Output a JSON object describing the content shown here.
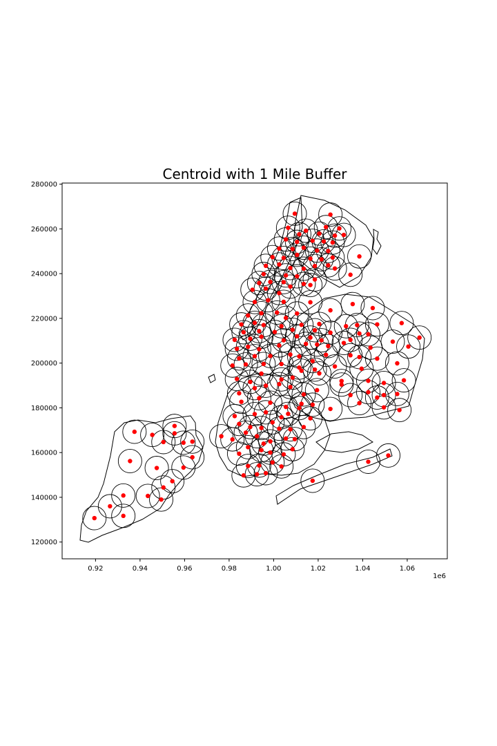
{
  "chart_data": {
    "type": "scatter",
    "title": "Centroid with 1 Mile Buffer",
    "xlabel": "",
    "ylabel": "",
    "x_offset_label": "1e6",
    "xlim": [
      0.905,
      1.078
    ],
    "ylim": [
      112500,
      280500
    ],
    "x_ticks": [
      0.92,
      0.94,
      0.96,
      0.98,
      1.0,
      1.02,
      1.04,
      1.06
    ],
    "x_tick_labels": [
      "0.92",
      "0.94",
      "0.96",
      "0.98",
      "1.00",
      "1.02",
      "1.04",
      "1.06"
    ],
    "y_ticks": [
      120000,
      140000,
      160000,
      180000,
      200000,
      220000,
      240000,
      260000,
      280000
    ],
    "y_tick_labels": [
      "120000",
      "140000",
      "160000",
      "180000",
      "200000",
      "220000",
      "240000",
      "260000",
      "280000"
    ],
    "grid": false,
    "buffer_radius": 0.00528,
    "colors": {
      "point": "#ff0000",
      "buffer": "#000000",
      "outline": "#000000"
    },
    "points": [
      [
        1.0095,
        266800
      ],
      [
        1.0255,
        266400
      ],
      [
        1.0065,
        260500
      ],
      [
        1.0145,
        259200
      ],
      [
        1.0235,
        260800
      ],
      [
        1.0295,
        260200
      ],
      [
        1.0115,
        257600
      ],
      [
        1.0205,
        257900
      ],
      [
        1.0275,
        257000
      ],
      [
        1.0315,
        257300
      ],
      [
        1.0055,
        255300
      ],
      [
        1.0105,
        254200
      ],
      [
        1.0175,
        254700
      ],
      [
        1.0225,
        254400
      ],
      [
        1.0265,
        253900
      ],
      [
        1.0025,
        251200
      ],
      [
        1.0085,
        251000
      ],
      [
        1.0135,
        251600
      ],
      [
        1.0195,
        250300
      ],
      [
        1.0245,
        250100
      ],
      [
        0.9995,
        247400
      ],
      [
        1.0045,
        247000
      ],
      [
        1.0105,
        248400
      ],
      [
        1.0165,
        246700
      ],
      [
        1.0215,
        246400
      ],
      [
        1.0265,
        247200
      ],
      [
        1.0385,
        247700
      ],
      [
        0.9965,
        243500
      ],
      [
        1.0025,
        244100
      ],
      [
        1.0075,
        242500
      ],
      [
        1.0135,
        242200
      ],
      [
        1.0185,
        243400
      ],
      [
        1.0245,
        243700
      ],
      [
        1.0275,
        242300
      ],
      [
        1.0345,
        239500
      ],
      [
        0.9955,
        239800
      ],
      [
        1.0055,
        239200
      ],
      [
        1.0105,
        238800
      ],
      [
        1.0185,
        237400
      ],
      [
        0.9935,
        235800
      ],
      [
        0.9985,
        236300
      ],
      [
        1.0045,
        236200
      ],
      [
        1.0135,
        235400
      ],
      [
        0.9905,
        232800
      ],
      [
        0.9965,
        233300
      ],
      [
        1.0025,
        231300
      ],
      [
        1.0075,
        234200
      ],
      [
        1.0165,
        234900
      ],
      [
        0.9915,
        227300
      ],
      [
        0.9975,
        228100
      ],
      [
        1.0045,
        227400
      ],
      [
        1.0165,
        227200
      ],
      [
        1.0355,
        226400
      ],
      [
        1.0445,
        224600
      ],
      [
        0.9885,
        221300
      ],
      [
        0.9945,
        222300
      ],
      [
        1.0015,
        222600
      ],
      [
        1.0055,
        220200
      ],
      [
        1.0105,
        222200
      ],
      [
        1.0255,
        223600
      ],
      [
        0.9855,
        217300
      ],
      [
        0.9915,
        218000
      ],
      [
        0.9955,
        217000
      ],
      [
        1.0035,
        216500
      ],
      [
        1.0125,
        217100
      ],
      [
        1.0205,
        217500
      ],
      [
        1.0325,
        216500
      ],
      [
        1.0375,
        217000
      ],
      [
        1.0465,
        217300
      ],
      [
        1.0575,
        217900
      ],
      [
        0.9865,
        213800
      ],
      [
        0.9935,
        214300
      ],
      [
        1.0005,
        213900
      ],
      [
        1.0085,
        214900
      ],
      [
        1.0185,
        214700
      ],
      [
        1.0255,
        213600
      ],
      [
        1.0385,
        213200
      ],
      [
        1.0425,
        212900
      ],
      [
        0.9825,
        210400
      ],
      [
        0.9895,
        210900
      ],
      [
        0.9945,
        211800
      ],
      [
        1.0045,
        210200
      ],
      [
        1.0105,
        212000
      ],
      [
        1.0165,
        211400
      ],
      [
        1.0215,
        210200
      ],
      [
        1.0345,
        210400
      ],
      [
        1.0535,
        209600
      ],
      [
        1.0655,
        211400
      ],
      [
        0.9835,
        206400
      ],
      [
        0.9885,
        207300
      ],
      [
        0.9935,
        206200
      ],
      [
        1.0025,
        207900
      ],
      [
        1.0145,
        208600
      ],
      [
        1.0195,
        208300
      ],
      [
        1.0245,
        207600
      ],
      [
        1.0315,
        209000
      ],
      [
        1.0435,
        206900
      ],
      [
        1.0605,
        207400
      ],
      [
        0.9845,
        202100
      ],
      [
        0.9915,
        203100
      ],
      [
        0.9985,
        203200
      ],
      [
        1.0075,
        203800
      ],
      [
        1.0115,
        203000
      ],
      [
        1.0175,
        200900
      ],
      [
        1.0235,
        203700
      ],
      [
        1.0345,
        203500
      ],
      [
        1.0385,
        202700
      ],
      [
        1.0465,
        202000
      ],
      [
        0.9815,
        198900
      ],
      [
        0.9875,
        199400
      ],
      [
        0.9955,
        199600
      ],
      [
        1.0035,
        199600
      ],
      [
        1.0115,
        198000
      ],
      [
        1.0185,
        197100
      ],
      [
        1.0275,
        198500
      ],
      [
        1.0395,
        197500
      ],
      [
        1.0555,
        199900
      ],
      [
        0.9835,
        192900
      ],
      [
        0.9895,
        191600
      ],
      [
        0.9945,
        195300
      ],
      [
        1.0035,
        192700
      ],
      [
        1.0085,
        193500
      ],
      [
        1.0125,
        196600
      ],
      [
        1.0205,
        195400
      ],
      [
        1.0305,
        192000
      ],
      [
        1.0425,
        192100
      ],
      [
        1.0495,
        191100
      ],
      [
        1.0585,
        192300
      ],
      [
        0.9845,
        186500
      ],
      [
        0.9915,
        188800
      ],
      [
        0.9965,
        189900
      ],
      [
        1.0025,
        190600
      ],
      [
        1.0075,
        189300
      ],
      [
        1.0135,
        186000
      ],
      [
        1.0195,
        187900
      ],
      [
        1.0305,
        190400
      ],
      [
        1.0345,
        185700
      ],
      [
        1.0425,
        187000
      ],
      [
        1.0495,
        185700
      ],
      [
        1.0555,
        186200
      ],
      [
        0.9855,
        182700
      ],
      [
        0.9935,
        184300
      ],
      [
        0.9985,
        182300
      ],
      [
        1.0055,
        180400
      ],
      [
        1.0125,
        181800
      ],
      [
        1.0175,
        181400
      ],
      [
        1.0255,
        179500
      ],
      [
        1.0385,
        182100
      ],
      [
        1.0465,
        184600
      ],
      [
        1.0495,
        180200
      ],
      [
        1.0565,
        179000
      ],
      [
        0.9825,
        176300
      ],
      [
        0.9915,
        177200
      ],
      [
        0.9965,
        178000
      ],
      [
        1.0035,
        175800
      ],
      [
        1.0065,
        177300
      ],
      [
        1.0115,
        179900
      ],
      [
        1.0165,
        175300
      ],
      [
        0.9845,
        172800
      ],
      [
        0.9895,
        171400
      ],
      [
        0.9945,
        171000
      ],
      [
        0.9995,
        173500
      ],
      [
        1.0025,
        170700
      ],
      [
        1.0075,
        170400
      ],
      [
        1.0135,
        171400
      ],
      [
        0.9765,
        167300
      ],
      [
        0.9815,
        165900
      ],
      [
        0.9875,
        168900
      ],
      [
        0.9925,
        167300
      ],
      [
        0.9955,
        164000
      ],
      [
        0.9985,
        165000
      ],
      [
        1.0055,
        166300
      ],
      [
        1.0095,
        166000
      ],
      [
        0.9845,
        159500
      ],
      [
        0.9885,
        162400
      ],
      [
        0.9945,
        161100
      ],
      [
        0.9985,
        160000
      ],
      [
        1.0085,
        161500
      ],
      [
        1.0045,
        159200
      ],
      [
        0.9885,
        154000
      ],
      [
        0.9935,
        154200
      ],
      [
        0.9995,
        155600
      ],
      [
        1.0035,
        153800
      ],
      [
        1.0425,
        155900
      ],
      [
        1.0515,
        158700
      ],
      [
        0.9865,
        149800
      ],
      [
        0.9925,
        150300
      ],
      [
        0.9965,
        150800
      ],
      [
        1.0175,
        147400
      ],
      [
        0.9375,
        169300
      ],
      [
        0.9455,
        167900
      ],
      [
        0.9505,
        164700
      ],
      [
        0.9555,
        171900
      ],
      [
        0.9555,
        168600
      ],
      [
        0.9595,
        164400
      ],
      [
        0.9635,
        164900
      ],
      [
        0.9355,
        156200
      ],
      [
        0.9475,
        153100
      ],
      [
        0.9595,
        153300
      ],
      [
        0.9635,
        157900
      ],
      [
        0.9545,
        147200
      ],
      [
        0.9505,
        144400
      ],
      [
        0.9435,
        140600
      ],
      [
        0.9495,
        139000
      ],
      [
        0.9325,
        140800
      ],
      [
        0.9265,
        136000
      ],
      [
        0.9325,
        131700
      ],
      [
        0.9195,
        130700
      ]
    ]
  }
}
